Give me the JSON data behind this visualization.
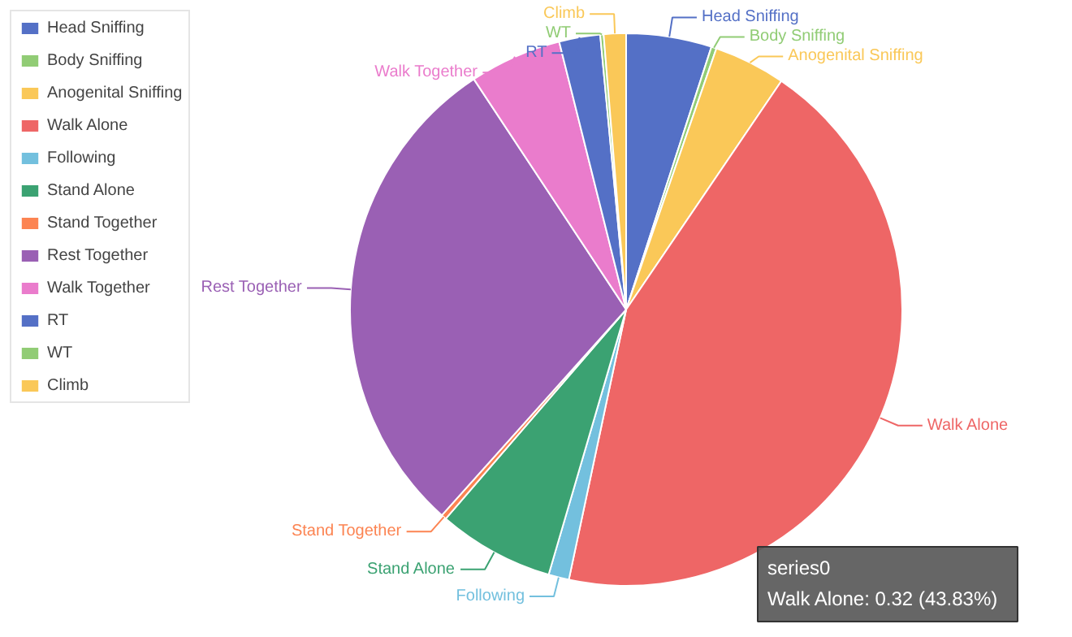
{
  "chart_data": {
    "type": "pie",
    "categories": [
      "Head Sniffing",
      "Body Sniffing",
      "Anogenital Sniffing",
      "Walk Alone",
      "Following",
      "Stand Alone",
      "Stand Together",
      "Rest Together",
      "Walk Together",
      "RT",
      "WT",
      "Climb"
    ],
    "values": [
      5.0,
      0.3,
      4.2,
      43.83,
      1.2,
      6.8,
      0.3,
      29.07,
      5.4,
      2.4,
      0.2,
      1.3
    ],
    "colors": [
      "#5470c6",
      "#91cc75",
      "#fac858",
      "#ee6666",
      "#73c0de",
      "#3ba272",
      "#fc8452",
      "#9a60b4",
      "#ea7ccc",
      "#5470c6",
      "#91cc75",
      "#fac858"
    ],
    "legend": "left",
    "annotations": [
      "series0",
      "Walk Alone: 0.32 (43.83%)"
    ]
  }
}
